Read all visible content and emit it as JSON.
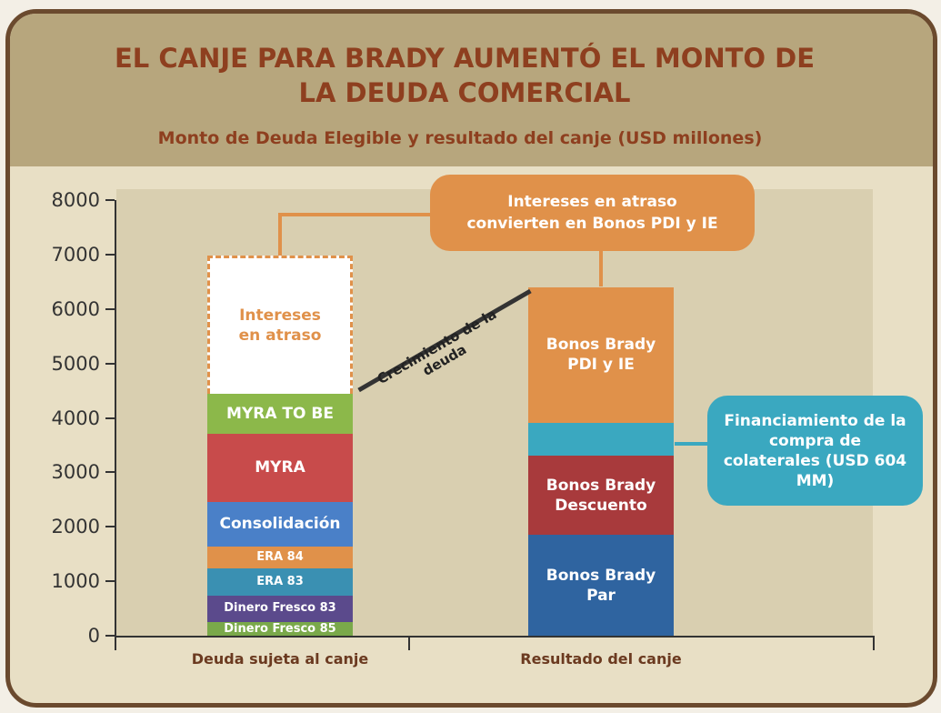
{
  "chart_data": {
    "type": "stacked_bar",
    "title": "EL CANJE PARA BRADY AUMENTÓ EL MONTO DE LA DEUDA COMERCIAL",
    "subtitle": "Monto de Deuda Elegible y resultado del canje (USD millones)",
    "categories": [
      "Deuda sujeta al canje",
      "Resultado del canje"
    ],
    "ylim": [
      0,
      8000
    ],
    "yticks": [
      0,
      1000,
      2000,
      3000,
      4000,
      5000,
      6000,
      7000,
      8000
    ],
    "series": [
      {
        "name": "Dinero Fresco 85",
        "color": "#7aa94a",
        "values": [
          250,
          null
        ]
      },
      {
        "name": "Dinero Fresco 83",
        "color": "#5b4a8c",
        "values": [
          490,
          null
        ]
      },
      {
        "name": "ERA 83",
        "color": "#3a90b2",
        "values": [
          500,
          null
        ]
      },
      {
        "name": "ERA 84",
        "color": "#e0914a",
        "values": [
          400,
          null
        ]
      },
      {
        "name": "Consolidación",
        "color": "#4a80c8",
        "values": [
          820,
          null
        ]
      },
      {
        "name": "MYRA",
        "color": "#c84b4b",
        "values": [
          1250,
          null
        ]
      },
      {
        "name": "MYRA TO BE",
        "color": "#8cb84a",
        "values": [
          735,
          null
        ]
      },
      {
        "name": "Intereses en atraso",
        "color": "#ffffff",
        "values": [
          2540,
          null
        ]
      },
      {
        "name": "Bonos Brady Par",
        "color": "#2f64a0",
        "values": [
          null,
          1850
        ]
      },
      {
        "name": "Bonos Brady Descuento",
        "color": "#a83a3c",
        "values": [
          null,
          1450
        ]
      },
      {
        "color": "#3aa8c0",
        "values": [
          null,
          604
        ]
      },
      {
        "name": "Bonos Brady PDI y IE",
        "color": "#e0914a",
        "values": [
          null,
          2500
        ]
      }
    ],
    "annotations": [
      "Intereses  en atraso convierten en Bonos PDI y IE",
      "Crecimiento de la deuda",
      "Financiamiento de la compra de colaterales (USD 604 MM)"
    ]
  }
}
